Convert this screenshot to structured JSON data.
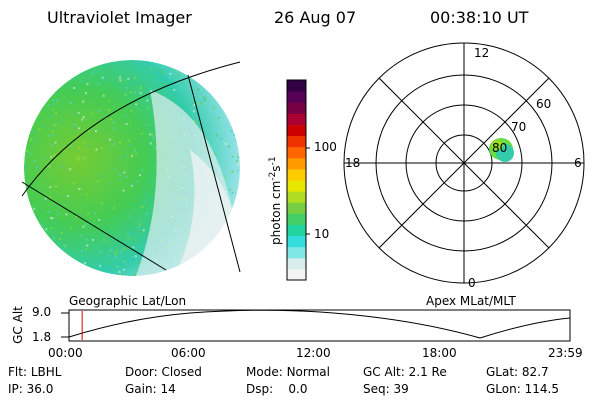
{
  "header": {
    "instrument": "Ultraviolet Imager",
    "date": "26 Aug 07",
    "time": "00:38:10 UT"
  },
  "colorbar": {
    "unit_main": "photon cm",
    "unit_exp1": "-2",
    "unit_main2": "s",
    "unit_exp2": "-1",
    "tick_labels": [
      "100",
      "10"
    ],
    "scale": "log",
    "range": [
      3,
      600
    ],
    "colors": [
      "#f4f4f4",
      "#d8ecec",
      "#7fe6e6",
      "#33dddd",
      "#22d4a0",
      "#44d066",
      "#77d044",
      "#b0dd22",
      "#e6e600",
      "#ffcc00",
      "#ff9900",
      "#ff6600",
      "#ee3300",
      "#cc0000",
      "#aa0033",
      "#770044",
      "#550055",
      "#330044"
    ]
  },
  "left_panel": {
    "caption": "Geographic Lat/Lon"
  },
  "polar_plot": {
    "caption": "Apex MLat/MLT",
    "mlt_labels": {
      "top": "12",
      "left": "18",
      "right": "6",
      "bottom": "0"
    },
    "lat_labels": [
      "80",
      "70",
      "60"
    ]
  },
  "altitude_track": {
    "ylabel": "GC Alt",
    "yticks": [
      "9.0",
      "1.8"
    ],
    "time_labels": [
      "00:00",
      "06:00",
      "12:00",
      "18:00",
      "23:59"
    ],
    "marker_time_hours": 0.63
  },
  "footer": {
    "flt_label": "Flt:",
    "flt_value": "LBHL",
    "ip_label": "IP:",
    "ip_value": "36.0",
    "door_label": "Door:",
    "door_value": "Closed",
    "gain_label": "Gain:",
    "gain_value": "14",
    "mode_label": "Mode:",
    "mode_value": "Normal",
    "dsp_label": "Dsp:",
    "dsp_value": "0.0",
    "gcalt_label": "GC Alt:",
    "gcalt_value": "2.1 Re",
    "seq_label": "Seq:",
    "seq_value": "39",
    "glat_label": "GLat:",
    "glat_value": "82.7",
    "glon_label": "GLon:",
    "glon_value": "114.5"
  }
}
